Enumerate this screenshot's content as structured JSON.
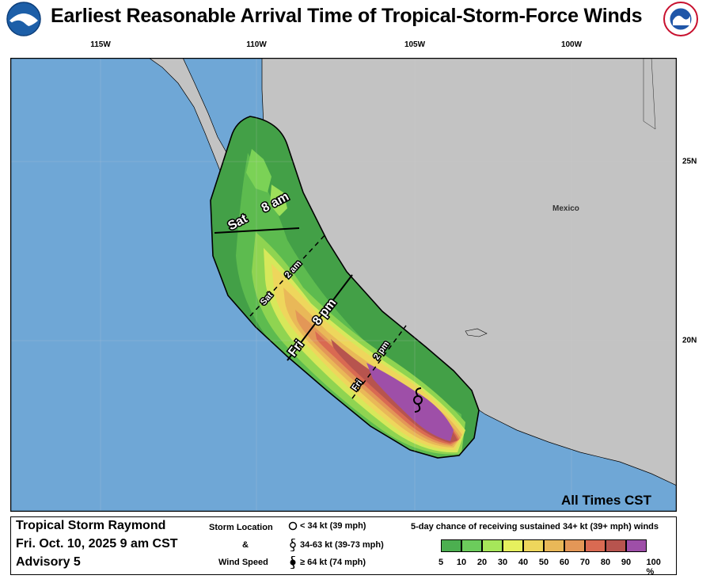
{
  "title": "Earliest Reasonable Arrival Time of Tropical-Storm-Force Winds",
  "logos": {
    "left": "NOAA",
    "right": "NATIONAL WEATHER SERVICE"
  },
  "map": {
    "longitude_labels": [
      "115W",
      "110W",
      "105W",
      "100W"
    ],
    "latitude_labels": [
      "25N",
      "20N"
    ],
    "place_label": "Mexico",
    "time_note": "All Times CST",
    "arrival_labels": [
      {
        "day": "Sat",
        "time": "8 am",
        "style": "solid"
      },
      {
        "day": "Sat",
        "time": "2 am",
        "style": "dashed"
      },
      {
        "day": "Fri",
        "time": "8 pm",
        "style": "solid"
      },
      {
        "day": "Fri",
        "time": "2 pm",
        "style": "dashed"
      }
    ],
    "colors": {
      "ocean": "#6fa7d6",
      "land": "#c3c3c3",
      "border": "#000000"
    }
  },
  "legend": {
    "storm_name": "Tropical Storm Raymond",
    "datetime": "Fri. Oct. 10, 2025  9 am CST",
    "advisory": "Advisory 5",
    "location_heading": [
      "Storm Location",
      "&",
      "Wind Speed"
    ],
    "location_items": [
      {
        "icon": "circle-icon",
        "text": "< 34 kt (39 mph)"
      },
      {
        "icon": "tropical-storm-icon",
        "text": "34-63 kt (39-73 mph)"
      },
      {
        "icon": "hurricane-icon",
        "text": "≥ 64 kt (74 mph)"
      }
    ],
    "scale_title": "5-day chance of receiving sustained 34+ kt (39+ mph) winds",
    "scale_ticks": [
      "5",
      "10",
      "20",
      "30",
      "40",
      "50",
      "60",
      "70",
      "80",
      "90",
      "100 %"
    ],
    "scale_colors": [
      "#4caf50",
      "#6ccc5c",
      "#a6e65a",
      "#e6f05e",
      "#eed65c",
      "#e9b858",
      "#e39757",
      "#d96a52",
      "#b7544e",
      "#9e4fa8"
    ]
  }
}
